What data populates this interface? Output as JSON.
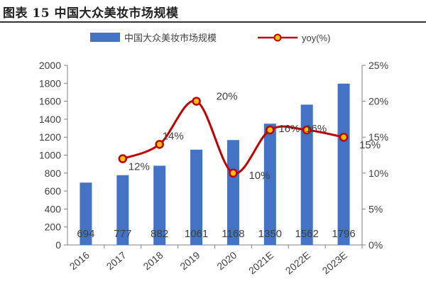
{
  "header": {
    "title": "图表 15 中国大众美妆市场规模"
  },
  "chart_data": {
    "type": "bar+line",
    "categories": [
      "2016",
      "2017",
      "2018",
      "2019",
      "2020",
      "2021E",
      "2022E",
      "2023E"
    ],
    "series": [
      {
        "name": "中国大众美妆市场规模",
        "type": "bar",
        "axis": "left",
        "values": [
          694,
          777,
          882,
          1061,
          1168,
          1350,
          1562,
          1796
        ],
        "labels": [
          "694",
          "777",
          "882",
          "1061",
          "1168",
          "1350",
          "1562",
          "1796"
        ],
        "color": "#4472C4"
      },
      {
        "name": "yoy(%)",
        "type": "line",
        "axis": "right",
        "values": [
          null,
          12,
          14,
          20,
          10,
          16,
          16,
          15
        ],
        "labels": [
          "",
          "12%",
          "14%",
          "20%",
          "10%",
          "16%",
          "16%",
          "15%"
        ],
        "color": "#C00000",
        "marker_fill": "#FFC000"
      }
    ],
    "y_left": {
      "min": 0,
      "max": 2000,
      "ticks": [
        "0",
        "200",
        "400",
        "600",
        "800",
        "1000",
        "1200",
        "1400",
        "1600",
        "1800",
        "2000"
      ]
    },
    "y_right": {
      "min": 0,
      "max": 25,
      "ticks": [
        "0%",
        "5%",
        "10%",
        "15%",
        "20%",
        "25%"
      ]
    },
    "legend": {
      "position": "top"
    }
  }
}
